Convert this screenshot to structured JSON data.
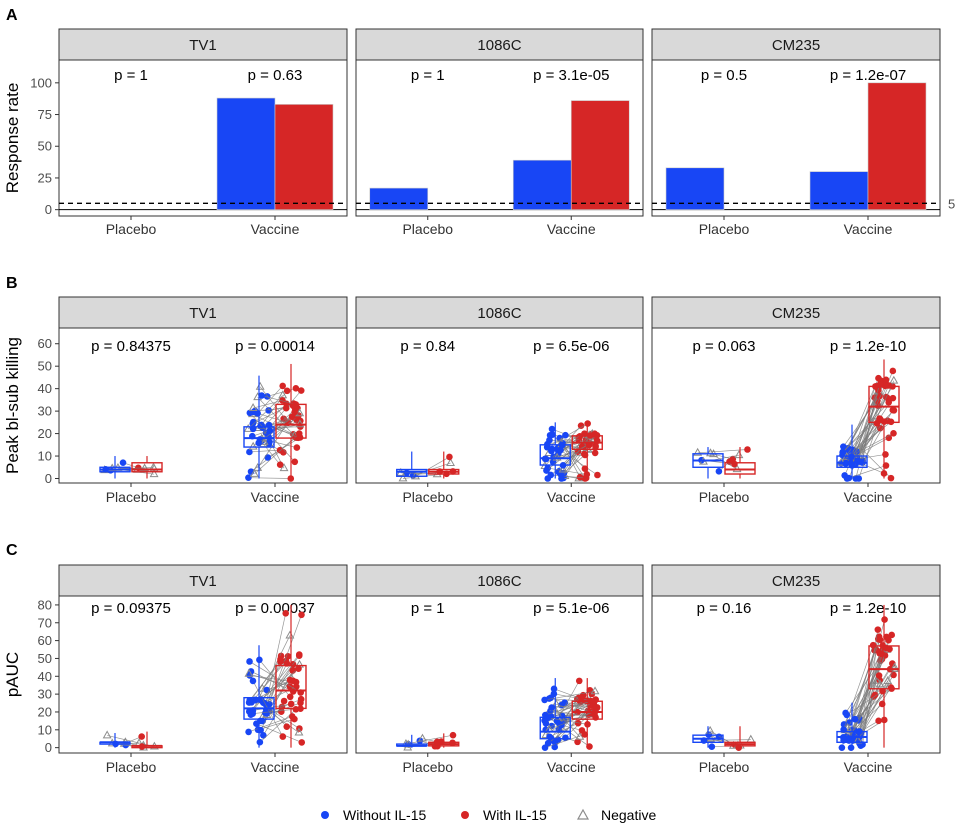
{
  "colors": {
    "without": "#1846f5",
    "with": "#d62626",
    "negative": "#8c8c8c",
    "strip": "#d9d9d9"
  },
  "legend": {
    "without_label": "Without IL-15",
    "with_label": "With IL-15",
    "negative_label": "Negative"
  },
  "chart_data": [
    {
      "panel": "A",
      "type": "bar",
      "ylabel": "Response rate",
      "ylim": [
        -5,
        118
      ],
      "yticks": [
        0,
        25,
        50,
        75,
        100
      ],
      "reference_line": 5,
      "reference_label": "5",
      "categories": [
        "Placebo",
        "Vaccine"
      ],
      "facets": [
        {
          "title": "TV1",
          "pvalues": [
            "p = 1",
            "p = 0.63"
          ],
          "without": [
            0,
            88
          ],
          "with": [
            0,
            83
          ]
        },
        {
          "title": "1086C",
          "pvalues": [
            "p = 1",
            "p = 3.1e-05"
          ],
          "without": [
            17,
            39
          ],
          "with": [
            0,
            86
          ]
        },
        {
          "title": "CM235",
          "pvalues": [
            "p = 0.5",
            "p = 1.2e-07"
          ],
          "without": [
            33,
            30
          ],
          "with": [
            0,
            100
          ]
        }
      ]
    },
    {
      "panel": "B",
      "type": "box",
      "ylabel": "Peak bl-sub killing",
      "ylim": [
        -2,
        67
      ],
      "yticks": [
        0,
        10,
        20,
        30,
        40,
        50,
        60
      ],
      "categories": [
        "Placebo",
        "Vaccine"
      ],
      "facets": [
        {
          "title": "TV1",
          "pvalues": [
            "p = 0.84375",
            "p = 0.00014"
          ],
          "placebo": {
            "without": {
              "q1": 3,
              "median": 4,
              "q3": 5
            },
            "with": {
              "q1": 3,
              "median": 4,
              "q3": 7
            },
            "max": 10,
            "n": 6
          },
          "vaccine": {
            "without": {
              "q1": 14,
              "median": 18,
              "q3": 23
            },
            "with": {
              "q1": 18,
              "median": 24,
              "q3": 33
            },
            "max": 51,
            "n": 40
          }
        },
        {
          "title": "1086C",
          "pvalues": [
            "p = 0.84",
            "p = 6.5e-06"
          ],
          "placebo": {
            "without": {
              "q1": 1,
              "median": 3,
              "q3": 4
            },
            "with": {
              "q1": 2,
              "median": 3,
              "q3": 4
            },
            "max": 12,
            "n": 6
          },
          "vaccine": {
            "without": {
              "q1": 6,
              "median": 9,
              "q3": 15
            },
            "with": {
              "q1": 13,
              "median": 16,
              "q3": 19
            },
            "max": 25,
            "n": 40
          }
        },
        {
          "title": "CM235",
          "pvalues": [
            "p = 0.063",
            "p = 1.2e-10"
          ],
          "placebo": {
            "without": {
              "q1": 5,
              "median": 8,
              "q3": 11
            },
            "with": {
              "q1": 2,
              "median": 4,
              "q3": 7
            },
            "max": 14,
            "n": 6
          },
          "vaccine": {
            "without": {
              "q1": 5,
              "median": 7,
              "q3": 10
            },
            "with": {
              "q1": 25,
              "median": 32,
              "q3": 41
            },
            "max": 53,
            "n": 40
          }
        }
      ]
    },
    {
      "panel": "C",
      "type": "box",
      "ylabel": "pAUC",
      "ylim": [
        -3,
        85
      ],
      "yticks": [
        0,
        10,
        20,
        30,
        40,
        50,
        60,
        70,
        80
      ],
      "categories": [
        "Placebo",
        "Vaccine"
      ],
      "facets": [
        {
          "title": "TV1",
          "pvalues": [
            "p = 0.09375",
            "p = 0.00037"
          ],
          "placebo": {
            "without": {
              "q1": 2,
              "median": 3,
              "q3": 3
            },
            "with": {
              "q1": 0,
              "median": 1,
              "q3": 1
            },
            "max": 9,
            "n": 6
          },
          "vaccine": {
            "without": {
              "q1": 16,
              "median": 22,
              "q3": 28
            },
            "with": {
              "q1": 22,
              "median": 32,
              "q3": 46
            },
            "max": 80,
            "n": 40
          }
        },
        {
          "title": "1086C",
          "pvalues": [
            "p = 1",
            "p = 5.1e-06"
          ],
          "placebo": {
            "without": {
              "q1": 1,
              "median": 1,
              "q3": 2
            },
            "with": {
              "q1": 1,
              "median": 2,
              "q3": 3
            },
            "max": 8,
            "n": 6
          },
          "vaccine": {
            "without": {
              "q1": 5,
              "median": 9,
              "q3": 17
            },
            "with": {
              "q1": 16,
              "median": 20,
              "q3": 26
            },
            "max": 39,
            "n": 40
          }
        },
        {
          "title": "CM235",
          "pvalues": [
            "p = 0.16",
            "p = 1.2e-10"
          ],
          "placebo": {
            "without": {
              "q1": 3,
              "median": 5,
              "q3": 7
            },
            "with": {
              "q1": 1,
              "median": 2,
              "q3": 3
            },
            "max": 12,
            "n": 6
          },
          "vaccine": {
            "without": {
              "q1": 3,
              "median": 6,
              "q3": 9
            },
            "with": {
              "q1": 33,
              "median": 44,
              "q3": 57
            },
            "max": 80,
            "n": 40
          }
        }
      ]
    }
  ]
}
